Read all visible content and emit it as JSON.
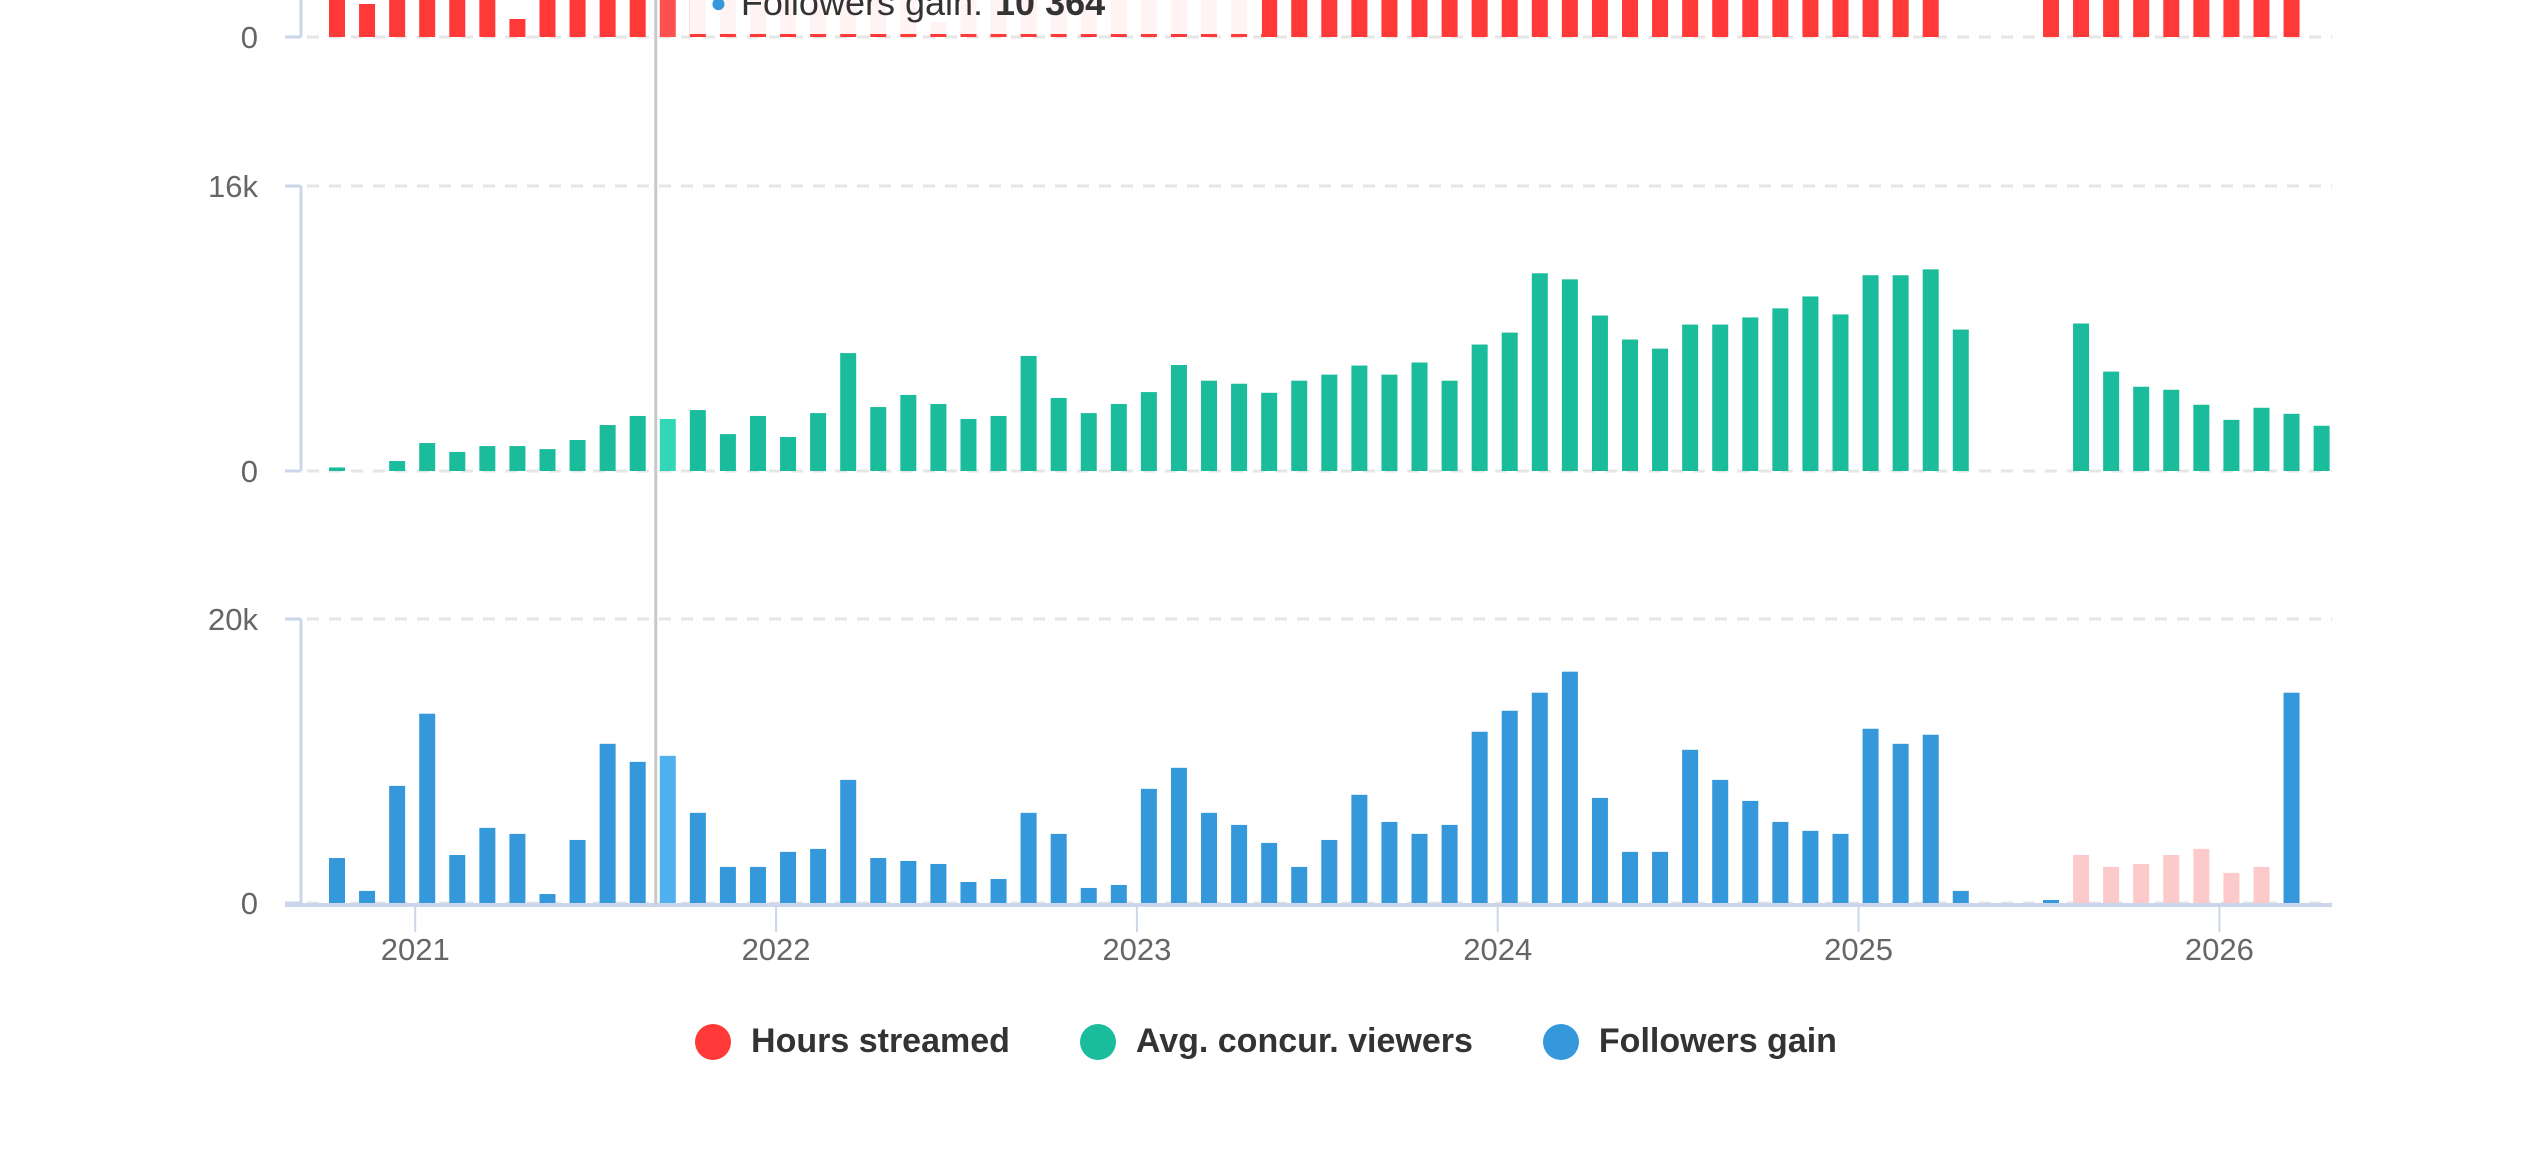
{
  "chart_data": [
    {
      "type": "bar",
      "title": "Hours streamed",
      "panel": "top (partially visible, clipped)",
      "color": "#ff3838",
      "y_ticks": [
        "0"
      ],
      "series": [
        {
          "name": "Hours streamed",
          "note": "values exceed visible area except a few",
          "values": [
            1,
            0.22,
            1,
            1,
            1,
            1,
            0.12,
            1,
            1,
            1,
            1,
            1,
            0.7,
            1,
            1,
            1,
            0.35,
            1,
            1,
            1,
            0.1,
            1,
            1,
            1,
            1,
            0.9,
            1,
            0.8,
            1,
            1,
            1,
            1,
            1,
            1,
            1,
            1,
            1,
            1,
            1,
            1,
            1,
            1,
            1,
            1,
            1,
            1,
            1,
            1,
            1,
            1,
            1,
            1,
            1,
            1,
            null,
            null,
            null,
            1,
            1,
            1,
            1,
            1,
            1,
            1,
            1,
            1
          ]
        }
      ]
    },
    {
      "type": "bar",
      "title": "Avg. concur. viewers",
      "ylim": [
        0,
        16000
      ],
      "y_ticks": [
        "0",
        "16k"
      ],
      "color": "#1abc9c",
      "series": [
        {
          "name": "Avg. concur. viewers",
          "values": [
            200,
            0,
            560,
            1570,
            1070,
            1400,
            1400,
            1230,
            1740,
            2580,
            3090,
            2920,
            3420,
            2070,
            3090,
            1910,
            3250,
            6620,
            3590,
            4270,
            3760,
            2920,
            3090,
            6460,
            4100,
            3250,
            3760,
            4430,
            5950,
            5070,
            4900,
            4390,
            5070,
            5410,
            5920,
            5410,
            6090,
            5070,
            7100,
            7770,
            11100,
            10760,
            8730,
            7380,
            6870,
            8220,
            8220,
            8620,
            9130,
            9800,
            8790,
            10990,
            10990,
            11320,
            7940,
            null,
            null,
            null,
            8280,
            5580,
            4730,
            4560,
            3720,
            2870,
            3550,
            3210,
            2540
          ]
        }
      ]
    },
    {
      "type": "bar",
      "title": "Followers gain",
      "ylim": [
        0,
        20000
      ],
      "y_ticks": [
        "0",
        "20k"
      ],
      "color": "#3498db",
      "series": [
        {
          "name": "Followers gain",
          "values": [
            3170,
            850,
            8250,
            13330,
            3380,
            5290,
            4870,
            630,
            4440,
            11210,
            9940,
            10364,
            6350,
            2540,
            2540,
            3600,
            3810,
            8670,
            3170,
            2960,
            2750,
            1480,
            1690,
            6350,
            4870,
            1060,
            1270,
            8040,
            9520,
            6350,
            5500,
            4230,
            2540,
            4440,
            7620,
            5710,
            4870,
            5500,
            12060,
            13540,
            14810,
            16290,
            7400,
            3600,
            3600,
            10790,
            8670,
            7190,
            5710,
            5080,
            4870,
            12270,
            11210,
            11850,
            850,
            null,
            null,
            210,
            null,
            null,
            null,
            null,
            null,
            null,
            null,
            14810
          ]
        },
        {
          "name": "Followers gain (faded)",
          "values": [
            null,
            null,
            null,
            null,
            null,
            null,
            null,
            null,
            null,
            null,
            null,
            null,
            null,
            null,
            null,
            null,
            null,
            null,
            null,
            null,
            null,
            null,
            null,
            null,
            null,
            null,
            null,
            null,
            null,
            null,
            null,
            null,
            null,
            null,
            null,
            null,
            null,
            null,
            null,
            null,
            null,
            null,
            null,
            null,
            null,
            null,
            null,
            null,
            null,
            null,
            null,
            null,
            null,
            null,
            null,
            null,
            null,
            null,
            3380,
            2540,
            2750,
            3380,
            3810,
            2120,
            2540,
            null
          ]
        }
      ]
    }
  ],
  "x_axis": {
    "start_month": "2020-10",
    "months": 66,
    "tick_labels": [
      "2021",
      "2022",
      "2023",
      "2024",
      "2025",
      "2026"
    ]
  },
  "highlight_index": 11,
  "tooltip": {
    "label": "Followers gain:",
    "value": "10 364"
  },
  "legend": [
    {
      "label": "Hours streamed",
      "color": "#ff3838"
    },
    {
      "label": "Avg. concur. viewers",
      "color": "#1abc9c"
    },
    {
      "label": "Followers gain",
      "color": "#3498db"
    }
  ]
}
